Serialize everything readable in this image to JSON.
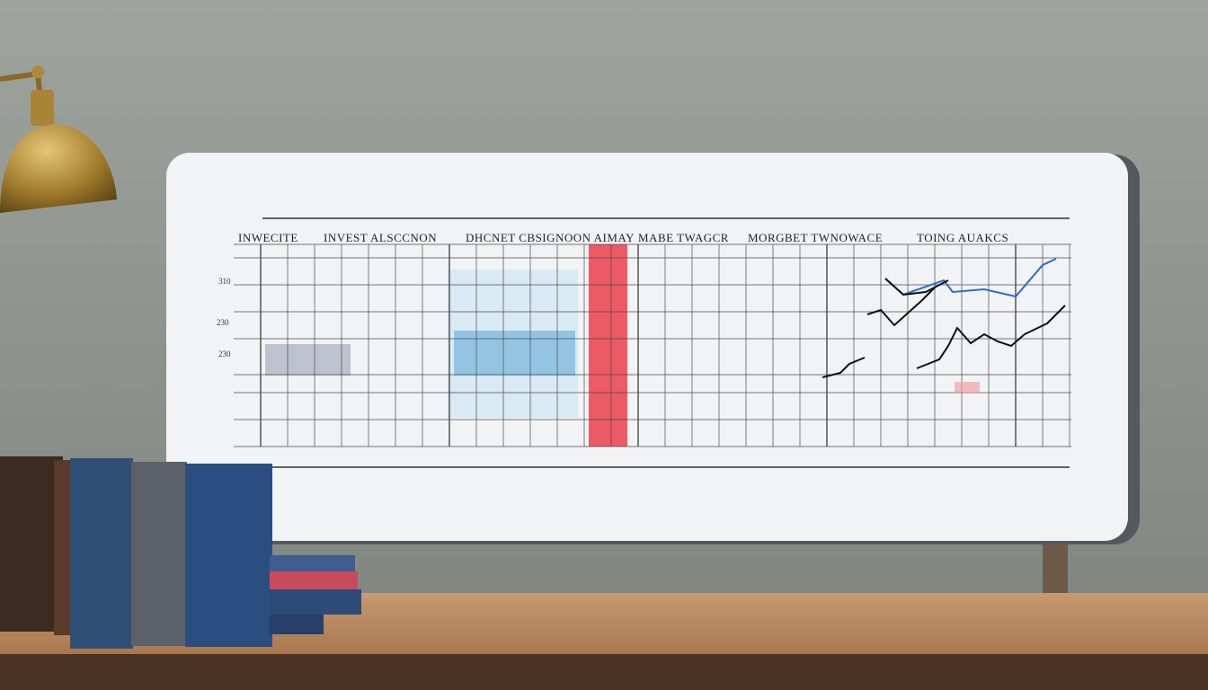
{
  "board": {
    "headers": [
      "INWECITE",
      "INVEST ALSCCNON",
      "DHCNET CBSIGNOON AIMAY",
      "MABE TWAGCR",
      "MORGBET TWNOWACE",
      "TOING AUAKCS"
    ],
    "row_labels": [
      "310",
      "230",
      "230"
    ]
  }
}
